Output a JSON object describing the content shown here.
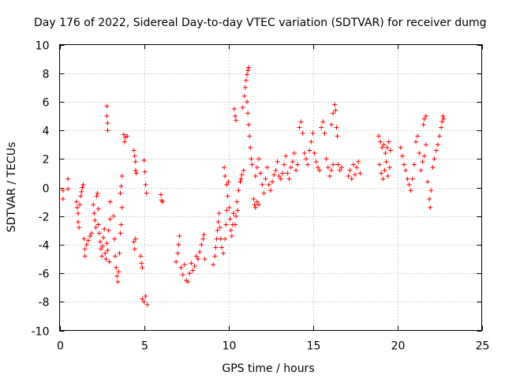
{
  "chart_data": {
    "type": "scatter",
    "title": "Day 176 of 2022, Sidereal Day-to-day VTEC variation (SDTVAR) for receiver dumg",
    "xlabel": "GPS time / hours",
    "ylabel": "SDTVAR / TECUs",
    "xlim": [
      0,
      25
    ],
    "ylim": [
      -10,
      10
    ],
    "x_ticks": [
      "0",
      "5",
      "10",
      "15",
      "20",
      "25"
    ],
    "y_ticks": [
      "-10",
      "-8",
      "-6",
      "-4",
      "-2",
      "0",
      "2",
      "4",
      "6",
      "8",
      "10"
    ],
    "grid": true,
    "marker": "+",
    "color": "#ff0000",
    "series": [
      {
        "name": "SDTVAR",
        "points": [
          [
            0.2,
            -0.8
          ],
          [
            0.2,
            -0.2
          ],
          [
            0.5,
            0.6
          ],
          [
            0.5,
            -0.1
          ],
          [
            1.0,
            -1.0
          ],
          [
            1.05,
            -1.4
          ],
          [
            1.1,
            -1.8
          ],
          [
            1.1,
            -2.4
          ],
          [
            1.15,
            -2.8
          ],
          [
            1.2,
            -1.2
          ],
          [
            1.25,
            -0.6
          ],
          [
            1.3,
            -0.3
          ],
          [
            1.35,
            0.0
          ],
          [
            1.4,
            0.2
          ],
          [
            1.45,
            -3.6
          ],
          [
            1.5,
            -4.3
          ],
          [
            1.5,
            -4.8
          ],
          [
            1.6,
            -4.0
          ],
          [
            1.7,
            -3.7
          ],
          [
            1.8,
            -3.4
          ],
          [
            1.9,
            -3.2
          ],
          [
            2.0,
            -1.2
          ],
          [
            2.05,
            -1.8
          ],
          [
            2.1,
            -2.3
          ],
          [
            2.15,
            -2.8
          ],
          [
            2.2,
            -0.6
          ],
          [
            2.25,
            -0.4
          ],
          [
            2.3,
            -1.5
          ],
          [
            2.3,
            -2.6
          ],
          [
            2.35,
            -3.2
          ],
          [
            2.4,
            -3.8
          ],
          [
            2.45,
            -4.3
          ],
          [
            2.5,
            -4.8
          ],
          [
            2.55,
            -4.1
          ],
          [
            2.6,
            -3.5
          ],
          [
            2.65,
            -2.9
          ],
          [
            2.7,
            -4.6
          ],
          [
            2.75,
            -5.0
          ],
          [
            2.8,
            -3.9
          ],
          [
            2.85,
            -4.4
          ],
          [
            2.9,
            -3.0
          ],
          [
            2.95,
            -5.2
          ],
          [
            3.0,
            -1.0
          ],
          [
            3.0,
            -2.2
          ],
          [
            2.8,
            5.7
          ],
          [
            2.8,
            5.0
          ],
          [
            2.85,
            4.5
          ],
          [
            2.85,
            4.0
          ],
          [
            3.2,
            -2.0
          ],
          [
            3.25,
            -3.6
          ],
          [
            3.3,
            -4.8
          ],
          [
            3.35,
            -5.6
          ],
          [
            3.4,
            -6.2
          ],
          [
            3.45,
            -6.6
          ],
          [
            3.5,
            -5.9
          ],
          [
            3.55,
            -4.6
          ],
          [
            3.6,
            -3.2
          ],
          [
            3.65,
            -2.6
          ],
          [
            3.6,
            -0.4
          ],
          [
            3.65,
            0.1
          ],
          [
            3.7,
            0.8
          ],
          [
            3.7,
            -1.4
          ],
          [
            3.8,
            3.7
          ],
          [
            3.9,
            3.5
          ],
          [
            4.0,
            3.6
          ],
          [
            3.85,
            3.2
          ],
          [
            4.4,
            2.6
          ],
          [
            4.45,
            2.2
          ],
          [
            4.5,
            1.8
          ],
          [
            4.5,
            1.2
          ],
          [
            4.55,
            1.0
          ],
          [
            4.4,
            -3.8
          ],
          [
            4.45,
            -4.3
          ],
          [
            4.5,
            -3.6
          ],
          [
            4.8,
            -4.8
          ],
          [
            4.85,
            -5.3
          ],
          [
            4.9,
            -5.6
          ],
          [
            4.9,
            -7.8
          ],
          [
            5.0,
            -8.0
          ],
          [
            5.1,
            -7.6
          ],
          [
            5.2,
            -8.2
          ],
          [
            5.0,
            1.9
          ],
          [
            5.05,
            1.1
          ],
          [
            5.1,
            0.2
          ],
          [
            5.15,
            -0.4
          ],
          [
            6.0,
            -0.5
          ],
          [
            6.05,
            -0.9
          ],
          [
            6.1,
            -1.0
          ],
          [
            6.9,
            -5.2
          ],
          [
            7.0,
            -4.6
          ],
          [
            7.05,
            -4.0
          ],
          [
            7.1,
            -3.4
          ],
          [
            7.2,
            -5.6
          ],
          [
            7.3,
            -6.1
          ],
          [
            7.4,
            -5.4
          ],
          [
            7.5,
            -6.5
          ],
          [
            7.6,
            -6.6
          ],
          [
            7.7,
            -6.0
          ],
          [
            7.8,
            -5.3
          ],
          [
            7.9,
            -5.8
          ],
          [
            8.0,
            -5.5
          ],
          [
            8.1,
            -4.8
          ],
          [
            8.2,
            -5.0
          ],
          [
            8.3,
            -4.5
          ],
          [
            8.4,
            -4.0
          ],
          [
            8.5,
            -3.6
          ],
          [
            8.55,
            -3.3
          ],
          [
            8.6,
            -5.0
          ],
          [
            9.1,
            -5.4
          ],
          [
            9.2,
            -4.8
          ],
          [
            9.25,
            -4.2
          ],
          [
            9.3,
            -3.6
          ],
          [
            9.35,
            -3.0
          ],
          [
            9.4,
            -2.4
          ],
          [
            9.45,
            -1.8
          ],
          [
            9.5,
            -2.8
          ],
          [
            9.55,
            -3.6
          ],
          [
            9.6,
            -4.2
          ],
          [
            9.7,
            -4.6
          ],
          [
            9.8,
            -3.6
          ],
          [
            9.85,
            -2.6
          ],
          [
            9.9,
            -1.6
          ],
          [
            9.95,
            -0.6
          ],
          [
            10.0,
            0.4
          ],
          [
            10.05,
            -1.4
          ],
          [
            10.1,
            -2.2
          ],
          [
            10.15,
            -3.0
          ],
          [
            10.2,
            -3.4
          ],
          [
            10.25,
            -2.6
          ],
          [
            10.3,
            -1.8
          ],
          [
            10.4,
            -2.6
          ],
          [
            10.45,
            -2.0
          ],
          [
            10.5,
            -1.0
          ],
          [
            10.55,
            -1.6
          ],
          [
            10.6,
            -0.2
          ],
          [
            10.7,
            0.4
          ],
          [
            10.75,
            0.6
          ],
          [
            10.8,
            0.9
          ],
          [
            10.9,
            1.2
          ],
          [
            9.75,
            1.4
          ],
          [
            9.8,
            0.8
          ],
          [
            9.9,
            0.2
          ],
          [
            10.35,
            5.5
          ],
          [
            10.4,
            5.0
          ],
          [
            10.45,
            4.7
          ],
          [
            10.85,
            5.6
          ],
          [
            10.95,
            6.4
          ],
          [
            11.0,
            7.0
          ],
          [
            11.05,
            7.5
          ],
          [
            11.1,
            7.9
          ],
          [
            11.15,
            8.2
          ],
          [
            11.2,
            8.4
          ],
          [
            11.1,
            6.0
          ],
          [
            11.15,
            5.2
          ],
          [
            11.2,
            4.4
          ],
          [
            11.25,
            3.6
          ],
          [
            11.3,
            2.8
          ],
          [
            11.35,
            2.0
          ],
          [
            11.4,
            1.6
          ],
          [
            11.5,
            -0.8
          ],
          [
            11.55,
            -1.2
          ],
          [
            11.6,
            -1.4
          ],
          [
            11.7,
            -1.0
          ],
          [
            11.8,
            -1.2
          ],
          [
            11.6,
            0.8
          ],
          [
            11.7,
            1.4
          ],
          [
            11.8,
            2.0
          ],
          [
            11.9,
            1.0
          ],
          [
            12.0,
            0.2
          ],
          [
            12.1,
            -0.4
          ],
          [
            12.2,
            0.6
          ],
          [
            12.3,
            1.4
          ],
          [
            12.4,
            0.2
          ],
          [
            12.5,
            -0.2
          ],
          [
            12.6,
            0.4
          ],
          [
            12.7,
            0.9
          ],
          [
            12.8,
            1.2
          ],
          [
            12.9,
            1.8
          ],
          [
            13.0,
            0.8
          ],
          [
            13.1,
            0.6
          ],
          [
            13.2,
            1.0
          ],
          [
            13.3,
            1.6
          ],
          [
            13.4,
            2.2
          ],
          [
            13.5,
            1.0
          ],
          [
            13.6,
            0.6
          ],
          [
            13.7,
            1.4
          ],
          [
            13.8,
            1.8
          ],
          [
            13.9,
            2.4
          ],
          [
            14.0,
            1.2
          ],
          [
            14.1,
            1.6
          ],
          [
            14.2,
            4.2
          ],
          [
            14.3,
            4.6
          ],
          [
            14.4,
            3.8
          ],
          [
            14.5,
            2.4
          ],
          [
            14.6,
            2.0
          ],
          [
            14.7,
            1.6
          ],
          [
            14.8,
            2.6
          ],
          [
            14.9,
            3.2
          ],
          [
            15.0,
            3.8
          ],
          [
            15.1,
            2.4
          ],
          [
            15.2,
            1.8
          ],
          [
            15.3,
            1.4
          ],
          [
            15.4,
            1.2
          ],
          [
            15.5,
            4.2
          ],
          [
            15.6,
            4.6
          ],
          [
            15.7,
            3.8
          ],
          [
            15.8,
            2.0
          ],
          [
            15.9,
            1.4
          ],
          [
            16.0,
            0.8
          ],
          [
            16.1,
            1.2
          ],
          [
            16.2,
            1.6
          ],
          [
            16.1,
            4.4
          ],
          [
            16.2,
            5.2
          ],
          [
            16.3,
            5.8
          ],
          [
            16.35,
            5.4
          ],
          [
            16.4,
            4.2
          ],
          [
            16.45,
            3.6
          ],
          [
            16.5,
            1.6
          ],
          [
            16.6,
            1.2
          ],
          [
            16.7,
            1.4
          ],
          [
            17.1,
            0.8
          ],
          [
            17.2,
            1.2
          ],
          [
            17.3,
            0.6
          ],
          [
            17.4,
            1.6
          ],
          [
            17.5,
            0.9
          ],
          [
            17.6,
            1.4
          ],
          [
            17.7,
            1.8
          ],
          [
            17.8,
            1.0
          ],
          [
            18.9,
            3.6
          ],
          [
            19.0,
            3.2
          ],
          [
            19.1,
            2.8
          ],
          [
            19.2,
            3.0
          ],
          [
            19.3,
            2.4
          ],
          [
            19.4,
            2.8
          ],
          [
            19.5,
            3.2
          ],
          [
            19.6,
            2.6
          ],
          [
            18.95,
            1.6
          ],
          [
            19.05,
            1.0
          ],
          [
            19.15,
            0.6
          ],
          [
            19.25,
            1.2
          ],
          [
            19.35,
            1.8
          ],
          [
            19.45,
            0.8
          ],
          [
            19.55,
            1.4
          ],
          [
            20.2,
            2.8
          ],
          [
            20.3,
            2.2
          ],
          [
            20.4,
            1.6
          ],
          [
            20.5,
            1.2
          ],
          [
            20.6,
            0.6
          ],
          [
            20.7,
            0.2
          ],
          [
            20.8,
            -0.2
          ],
          [
            20.9,
            0.6
          ],
          [
            21.0,
            1.6
          ],
          [
            21.1,
            3.2
          ],
          [
            21.2,
            3.6
          ],
          [
            21.3,
            2.4
          ],
          [
            21.4,
            1.2
          ],
          [
            21.5,
            1.8
          ],
          [
            21.6,
            2.2
          ],
          [
            21.7,
            3.0
          ],
          [
            21.55,
            4.4
          ],
          [
            21.6,
            4.8
          ],
          [
            21.7,
            5.0
          ],
          [
            21.8,
            0.4
          ],
          [
            21.9,
            -0.8
          ],
          [
            21.95,
            -1.4
          ],
          [
            22.0,
            -0.2
          ],
          [
            22.1,
            1.4
          ],
          [
            22.2,
            2.0
          ],
          [
            22.3,
            2.6
          ],
          [
            22.4,
            3.0
          ],
          [
            22.5,
            3.6
          ],
          [
            22.6,
            4.2
          ],
          [
            22.65,
            4.6
          ],
          [
            22.7,
            5.0
          ],
          [
            22.75,
            4.8
          ]
        ]
      }
    ]
  }
}
